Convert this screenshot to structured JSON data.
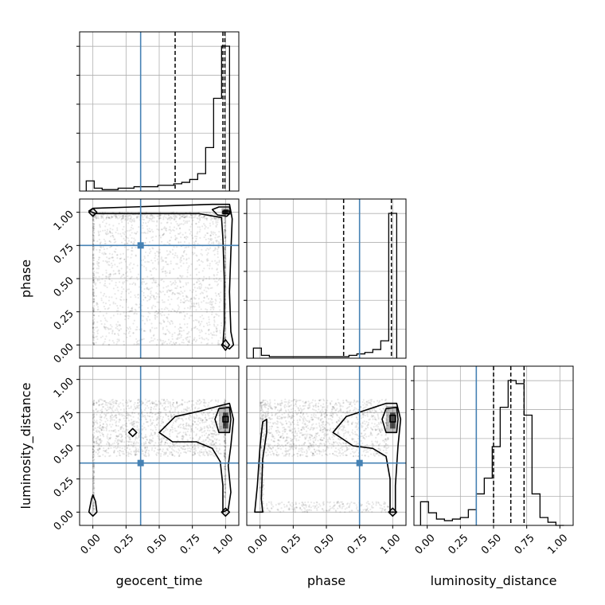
{
  "chart_data": {
    "type": "corner",
    "parameters": [
      "geocent_time",
      "phase",
      "luminosity_distance"
    ],
    "axis_range": [
      -0.1,
      1.1
    ],
    "ticks": [
      0.0,
      0.25,
      0.5,
      0.75,
      1.0
    ],
    "tick_labels": [
      "0.00",
      "0.25",
      "0.50",
      "0.75",
      "1.00"
    ],
    "grid": true,
    "truth": {
      "geocent_time": 0.36,
      "phase": 0.75,
      "luminosity_distance": 0.37
    },
    "truth_color": "#4682b4",
    "quantile_color": "#000000",
    "histograms": {
      "geocent_time": {
        "bin_edges": [
          -0.05,
          0.01,
          0.07,
          0.13,
          0.19,
          0.25,
          0.31,
          0.37,
          0.43,
          0.49,
          0.55,
          0.61,
          0.67,
          0.73,
          0.79,
          0.85,
          0.91,
          0.97,
          1.03
        ],
        "counts": [
          0.07,
          0.02,
          0.01,
          0.01,
          0.02,
          0.02,
          0.03,
          0.03,
          0.03,
          0.04,
          0.04,
          0.05,
          0.06,
          0.08,
          0.12,
          0.3,
          0.64,
          1.0
        ],
        "quantiles": [
          0.62,
          0.98,
          0.995
        ]
      },
      "phase": {
        "bin_edges": [
          -0.05,
          0.01,
          0.07,
          0.13,
          0.19,
          0.25,
          0.31,
          0.37,
          0.43,
          0.49,
          0.55,
          0.61,
          0.67,
          0.73,
          0.79,
          0.85,
          0.91,
          0.97,
          1.03
        ],
        "counts": [
          0.07,
          0.02,
          0.01,
          0.01,
          0.01,
          0.01,
          0.01,
          0.01,
          0.01,
          0.01,
          0.01,
          0.01,
          0.02,
          0.03,
          0.04,
          0.06,
          0.12,
          1.0
        ],
        "quantiles": [
          0.63,
          0.99
        ]
      },
      "luminosity_distance": {
        "bin_edges": [
          -0.05,
          0.01,
          0.07,
          0.13,
          0.19,
          0.25,
          0.31,
          0.37,
          0.43,
          0.49,
          0.55,
          0.61,
          0.67,
          0.73,
          0.79,
          0.85,
          0.91,
          0.97,
          1.03
        ],
        "counts": [
          0.15,
          0.08,
          0.04,
          0.03,
          0.04,
          0.05,
          0.1,
          0.2,
          0.3,
          0.5,
          0.75,
          0.92,
          0.9,
          0.7,
          0.2,
          0.05,
          0.02,
          0.0
        ],
        "quantiles": [
          0.5,
          0.63,
          0.73
        ]
      }
    },
    "panels_2d": [
      {
        "x": "geocent_time",
        "y": "phase",
        "contours": [
          [
            [
              0.0,
              1.03
            ],
            [
              0.3,
              1.04
            ],
            [
              0.6,
              1.05
            ],
            [
              0.9,
              1.06
            ],
            [
              1.03,
              1.06
            ],
            [
              1.05,
              0.95
            ],
            [
              1.04,
              0.7
            ],
            [
              1.03,
              0.4
            ],
            [
              1.04,
              0.1
            ],
            [
              1.06,
              0.0
            ],
            [
              1.03,
              -0.03
            ],
            [
              0.98,
              0.0
            ],
            [
              0.99,
              0.15
            ],
            [
              0.99,
              0.5
            ],
            [
              0.98,
              0.8
            ],
            [
              0.97,
              0.96
            ],
            [
              0.8,
              0.99
            ],
            [
              0.5,
              0.99
            ],
            [
              0.2,
              0.99
            ],
            [
              0.02,
              0.99
            ],
            [
              -0.03,
              1.01
            ],
            [
              0.0,
              1.03
            ]
          ],
          [
            [
              0.9,
              1.02
            ],
            [
              0.95,
              1.04
            ],
            [
              1.03,
              1.04
            ],
            [
              1.04,
              1.0
            ],
            [
              1.01,
              0.97
            ],
            [
              0.94,
              0.98
            ],
            [
              0.9,
              1.02
            ]
          ],
          [
            [
              0.98,
              1.01
            ],
            [
              1.03,
              1.01
            ],
            [
              1.03,
              0.99
            ],
            [
              0.98,
              0.99
            ],
            [
              0.98,
              1.01
            ]
          ],
          [
            [
              -0.03,
              1.0
            ],
            [
              0.0,
              1.03
            ],
            [
              0.03,
              1.0
            ],
            [
              0.0,
              0.97
            ],
            [
              -0.03,
              1.0
            ]
          ],
          [
            [
              0.97,
              0.0
            ],
            [
              1.0,
              0.04
            ],
            [
              1.03,
              0.0
            ],
            [
              1.0,
              -0.04
            ],
            [
              0.97,
              0.0
            ]
          ]
        ],
        "density_cells": [
          {
            "x": 0.97,
            "y": 0.98,
            "w": 0.07,
            "h": 0.05,
            "level": 0.35
          },
          {
            "x": 0.985,
            "y": 0.99,
            "w": 0.035,
            "h": 0.03,
            "level": 0.8
          }
        ],
        "scatter_clusters": [
          {
            "x": [
              0.02,
              0.97
            ],
            "y": [
              0.0,
              0.98
            ],
            "n": 1400
          },
          {
            "x": [
              0.0,
              0.01
            ],
            "y": [
              0.0,
              1.0
            ],
            "n": 220
          },
          {
            "x": [
              0.99,
              1.0
            ],
            "y": [
              0.0,
              1.0
            ],
            "n": 220
          },
          {
            "x": [
              0.0,
              1.0
            ],
            "y": [
              0.95,
              1.0
            ],
            "n": 280
          }
        ]
      },
      {
        "x": "geocent_time",
        "y": "luminosity_distance",
        "contours": [
          [
            [
              0.5,
              0.6
            ],
            [
              0.62,
              0.72
            ],
            [
              0.8,
              0.76
            ],
            [
              0.95,
              0.8
            ],
            [
              1.03,
              0.82
            ],
            [
              1.06,
              0.7
            ],
            [
              1.04,
              0.5
            ],
            [
              1.02,
              0.35
            ],
            [
              1.04,
              0.15
            ],
            [
              1.02,
              0.02
            ],
            [
              0.98,
              0.0
            ],
            [
              0.98,
              0.2
            ],
            [
              0.96,
              0.38
            ],
            [
              0.9,
              0.48
            ],
            [
              0.78,
              0.53
            ],
            [
              0.6,
              0.53
            ],
            [
              0.5,
              0.6
            ]
          ],
          [
            [
              0.92,
              0.7
            ],
            [
              0.95,
              0.78
            ],
            [
              1.03,
              0.79
            ],
            [
              1.04,
              0.7
            ],
            [
              1.03,
              0.6
            ],
            [
              0.95,
              0.6
            ],
            [
              0.92,
              0.7
            ]
          ],
          [
            [
              0.98,
              0.72
            ],
            [
              1.02,
              0.72
            ],
            [
              1.02,
              0.68
            ],
            [
              0.98,
              0.68
            ],
            [
              0.98,
              0.72
            ]
          ],
          [
            [
              0.27,
              0.6
            ],
            [
              0.3,
              0.63
            ],
            [
              0.33,
              0.6
            ],
            [
              0.3,
              0.57
            ],
            [
              0.27,
              0.6
            ]
          ],
          [
            [
              -0.03,
              0.0
            ],
            [
              -0.01,
              0.1
            ],
            [
              0.0,
              0.13
            ],
            [
              0.02,
              0.08
            ],
            [
              0.03,
              0.0
            ],
            [
              0.0,
              -0.03
            ],
            [
              -0.03,
              0.0
            ]
          ],
          [
            [
              0.97,
              0.0
            ],
            [
              1.0,
              0.03
            ],
            [
              1.03,
              0.0
            ],
            [
              1.0,
              -0.03
            ],
            [
              0.97,
              0.0
            ]
          ]
        ],
        "density_cells": [
          {
            "x": 0.95,
            "y": 0.6,
            "w": 0.08,
            "h": 0.2,
            "level": 0.25
          },
          {
            "x": 0.98,
            "y": 0.63,
            "w": 0.04,
            "h": 0.12,
            "level": 0.6
          }
        ],
        "scatter_clusters": [
          {
            "x": [
              0.02,
              0.97
            ],
            "y": [
              0.42,
              0.85
            ],
            "n": 1300
          },
          {
            "x": [
              0.0,
              0.01
            ],
            "y": [
              0.0,
              0.85
            ],
            "n": 200
          },
          {
            "x": [
              0.99,
              1.0
            ],
            "y": [
              0.1,
              0.85
            ],
            "n": 200
          }
        ]
      },
      {
        "x": "phase",
        "y": "luminosity_distance",
        "contours": [
          [
            [
              0.55,
              0.6
            ],
            [
              0.65,
              0.72
            ],
            [
              0.8,
              0.77
            ],
            [
              0.95,
              0.82
            ],
            [
              1.03,
              0.82
            ],
            [
              1.06,
              0.7
            ],
            [
              1.04,
              0.5
            ],
            [
              1.02,
              0.2
            ],
            [
              1.02,
              0.0
            ],
            [
              0.98,
              0.0
            ],
            [
              0.98,
              0.25
            ],
            [
              0.95,
              0.42
            ],
            [
              0.85,
              0.48
            ],
            [
              0.7,
              0.5
            ],
            [
              0.55,
              0.6
            ]
          ],
          [
            [
              0.92,
              0.7
            ],
            [
              0.95,
              0.78
            ],
            [
              1.03,
              0.79
            ],
            [
              1.04,
              0.7
            ],
            [
              1.03,
              0.6
            ],
            [
              0.95,
              0.6
            ],
            [
              0.92,
              0.7
            ]
          ],
          [
            [
              0.98,
              0.73
            ],
            [
              1.02,
              0.73
            ],
            [
              1.02,
              0.68
            ],
            [
              0.98,
              0.68
            ],
            [
              0.98,
              0.73
            ]
          ],
          [
            [
              -0.04,
              0.0
            ],
            [
              -0.02,
              0.2
            ],
            [
              0.0,
              0.5
            ],
            [
              0.02,
              0.68
            ],
            [
              0.05,
              0.7
            ],
            [
              0.05,
              0.6
            ],
            [
              0.02,
              0.4
            ],
            [
              0.01,
              0.1
            ],
            [
              0.02,
              0.0
            ],
            [
              -0.04,
              0.0
            ]
          ],
          [
            [
              0.97,
              0.0
            ],
            [
              1.0,
              0.03
            ],
            [
              1.03,
              0.0
            ],
            [
              1.0,
              -0.03
            ],
            [
              0.97,
              0.0
            ]
          ]
        ],
        "density_cells": [
          {
            "x": 0.95,
            "y": 0.6,
            "w": 0.08,
            "h": 0.2,
            "level": 0.25
          },
          {
            "x": 0.98,
            "y": 0.63,
            "w": 0.04,
            "h": 0.12,
            "level": 0.6
          }
        ],
        "scatter_clusters": [
          {
            "x": [
              0.02,
              0.97
            ],
            "y": [
              0.42,
              0.85
            ],
            "n": 1300
          },
          {
            "x": [
              0.05,
              0.97
            ],
            "y": [
              0.0,
              0.08
            ],
            "n": 220
          },
          {
            "x": [
              0.0,
              0.03
            ],
            "y": [
              0.0,
              0.85
            ],
            "n": 160
          }
        ]
      }
    ]
  }
}
